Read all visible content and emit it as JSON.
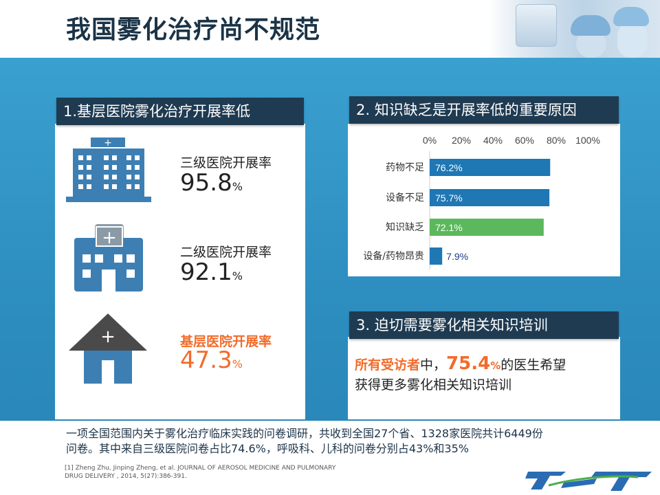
{
  "title": "我国雾化治疗尚不规范",
  "panel1": {
    "heading": "1.基层医院雾化治疗开展率低",
    "stats": [
      {
        "label": "三级医院开展率",
        "value": "95.8",
        "unit": "%",
        "icon": "tall-hospital-icon"
      },
      {
        "label": "二级医院开展率",
        "value": "92.1",
        "unit": "%",
        "icon": "hospital-icon"
      },
      {
        "label": "基层医院开展率",
        "value": "47.3",
        "unit": "%",
        "icon": "house-clinic-icon",
        "highlight": "#f26b2a"
      }
    ]
  },
  "panel2": {
    "heading": "2. 知识缺乏是开展率低的重要原因"
  },
  "chart_data": {
    "type": "bar",
    "orientation": "horizontal",
    "categories": [
      "药物不足",
      "设备不足",
      "知识缺乏",
      "设备/药物昂贵"
    ],
    "values": [
      76.2,
      75.7,
      72.1,
      7.9
    ],
    "value_labels": [
      "76.2%",
      "75.7%",
      "72.1%",
      "7.9%"
    ],
    "ticks": [
      "0%",
      "20%",
      "40%",
      "60%",
      "80%",
      "100%"
    ],
    "xlim": [
      0,
      100
    ],
    "axis_position": "top",
    "colors": [
      "#1f77b4",
      "#1f77b4",
      "#5cb85c",
      "#1f77b4"
    ]
  },
  "panel3": {
    "heading": "3. 迫切需要雾化相关知识培训",
    "text_prefix": "所有受访者",
    "text_mid": "中，",
    "value": "75.4",
    "unit": "%",
    "text_suffix": "的医生希望",
    "text_line2": "获得更多雾化相关知识培训"
  },
  "summary": {
    "line1": "一项全国范围内关于雾化治疗临床实践的问卷调研，共收到全国27个省、1328家医院共计6449份",
    "line2": "问卷。其中来自三级医院问卷占比74.6%，呼吸科、儿科的问卷分别占43%和35%"
  },
  "reference": {
    "line1": "[1] Zheng Zhu, Jinping Zheng, et al. JOURNAL OF AEROSOL MEDICINE AND PULMONARY",
    "line2": "DRUG DELIVERY , 2014, 5(27):386-391."
  },
  "logo": {
    "text": "J-S-T"
  },
  "colors": {
    "accent": "#2d8ec0",
    "heading_bg": "#1f3b52",
    "highlight": "#f26b2a",
    "bar": "#1f77b4",
    "bar_highlight": "#5cb85c"
  }
}
